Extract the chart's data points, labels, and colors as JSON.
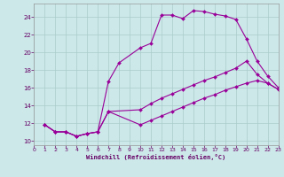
{
  "xlabel": "Windchill (Refroidissement éolien,°C)",
  "bg_color": "#cce8e8",
  "line_color": "#990099",
  "grid_color": "#aacccc",
  "axis_color": "#660066",
  "tick_color": "#660066",
  "xlim": [
    0,
    23
  ],
  "ylim": [
    9.5,
    25.5
  ],
  "xticks": [
    0,
    1,
    2,
    3,
    4,
    5,
    6,
    7,
    8,
    9,
    10,
    11,
    12,
    13,
    14,
    15,
    16,
    17,
    18,
    19,
    20,
    21,
    22,
    23
  ],
  "yticks": [
    10,
    12,
    14,
    16,
    18,
    20,
    22,
    24
  ],
  "line1_x": [
    1,
    2,
    3,
    4,
    5,
    6,
    7,
    8,
    10,
    11,
    12,
    13,
    14,
    15,
    16,
    17,
    18,
    19,
    20,
    21,
    22,
    23
  ],
  "line1_y": [
    11.8,
    11.0,
    11.0,
    10.5,
    10.8,
    11.0,
    16.7,
    18.8,
    20.5,
    21.0,
    24.2,
    24.2,
    23.8,
    24.7,
    24.6,
    24.3,
    24.1,
    23.7,
    21.5,
    19.0,
    17.3,
    16.0
  ],
  "line2_x": [
    1,
    2,
    3,
    4,
    5,
    6,
    7,
    10,
    11,
    12,
    13,
    14,
    15,
    16,
    17,
    18,
    19,
    20,
    21,
    22,
    23
  ],
  "line2_y": [
    11.8,
    11.0,
    11.0,
    10.5,
    10.8,
    11.0,
    13.3,
    13.5,
    14.2,
    14.8,
    15.3,
    15.8,
    16.3,
    16.8,
    17.2,
    17.7,
    18.2,
    19.0,
    17.5,
    16.5,
    15.8
  ],
  "line3_x": [
    1,
    2,
    3,
    4,
    5,
    6,
    7,
    10,
    11,
    12,
    13,
    14,
    15,
    16,
    17,
    18,
    19,
    20,
    21,
    22,
    23
  ],
  "line3_y": [
    11.8,
    11.0,
    11.0,
    10.5,
    10.8,
    11.0,
    13.3,
    11.8,
    12.3,
    12.8,
    13.3,
    13.8,
    14.3,
    14.8,
    15.2,
    15.7,
    16.1,
    16.5,
    16.8,
    16.5,
    15.8
  ]
}
